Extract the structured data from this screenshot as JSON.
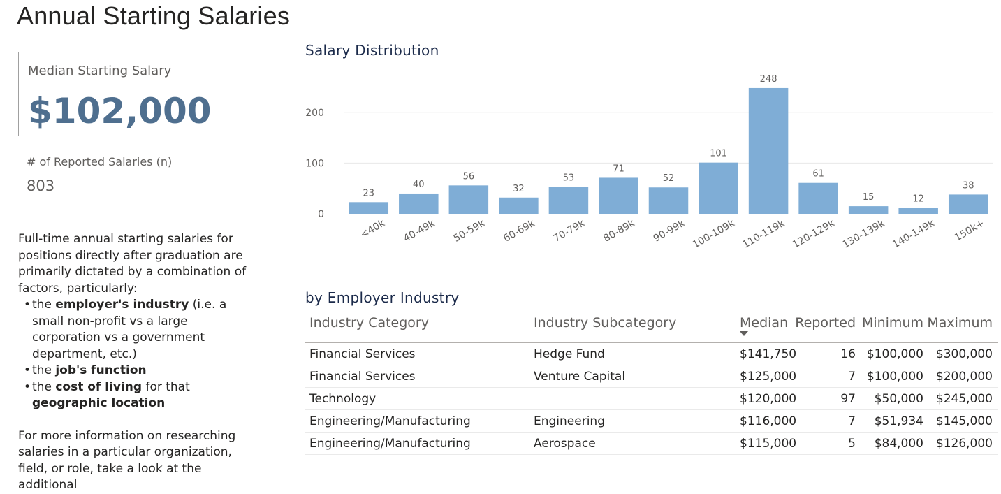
{
  "page_title": "Annual Starting Salaries",
  "kpi": {
    "label": "Median Starting Salary",
    "value": "$102,000",
    "count_label": "# of Reported Salaries (n)",
    "count_value": "803"
  },
  "description": {
    "intro": "Full-time annual starting salaries for positions directly after graduation are primarily dictated by a combination of factors, particularly:",
    "bullets": [
      {
        "pre": "the ",
        "b1": "employer's industry",
        "mid": " (i.e. a small non-profit vs a large corporation vs a government department, etc.)",
        "b2": "",
        "post": ""
      },
      {
        "pre": "the ",
        "b1": "job's function",
        "mid": "",
        "b2": "",
        "post": ""
      },
      {
        "pre": "the ",
        "b1": "cost of living",
        "mid": " for that ",
        "b2": "geographic location",
        "post": ""
      }
    ],
    "outro": "For more information on researching salaries in a particular organization, field, or role, take a look at the additional"
  },
  "distribution_title": "Salary Distribution",
  "chart_data": {
    "type": "bar",
    "title": "Salary Distribution",
    "categories": [
      "<40k",
      "40-49k",
      "50-59k",
      "60-69k",
      "70-79k",
      "80-89k",
      "90-99k",
      "100-109k",
      "110-119k",
      "120-129k",
      "130-139k",
      "140-149k",
      "150k+"
    ],
    "values": [
      23,
      40,
      56,
      32,
      53,
      71,
      52,
      101,
      248,
      61,
      15,
      12,
      38
    ],
    "yticks": [
      0,
      100,
      200
    ],
    "ylim": [
      0,
      260
    ],
    "xlabel": "",
    "ylabel": "",
    "grid": true,
    "bar_color": "#7fadd6",
    "data_labels": true
  },
  "industry": {
    "title": "by Employer Industry",
    "columns": {
      "category": "Industry Category",
      "subcategory": "Industry Subcategory",
      "median": "Median",
      "reported": "Reported",
      "minimum": "Minimum",
      "maximum": "Maximum"
    },
    "sorted_by": "Median",
    "rows": [
      {
        "category": "Financial Services",
        "subcategory": "Hedge Fund",
        "median": "$141,750",
        "reported": "16",
        "minimum": "$100,000",
        "maximum": "$300,000"
      },
      {
        "category": "Financial Services",
        "subcategory": "Venture Capital",
        "median": "$125,000",
        "reported": "7",
        "minimum": "$100,000",
        "maximum": "$200,000"
      },
      {
        "category": "Technology",
        "subcategory": "",
        "median": "$120,000",
        "reported": "97",
        "minimum": "$50,000",
        "maximum": "$245,000"
      },
      {
        "category": "Engineering/Manufacturing",
        "subcategory": "Engineering",
        "median": "$116,000",
        "reported": "7",
        "minimum": "$51,934",
        "maximum": "$145,000"
      },
      {
        "category": "Engineering/Manufacturing",
        "subcategory": "Aerospace",
        "median": "$115,000",
        "reported": "5",
        "minimum": "$84,000",
        "maximum": "$126,000"
      }
    ]
  }
}
